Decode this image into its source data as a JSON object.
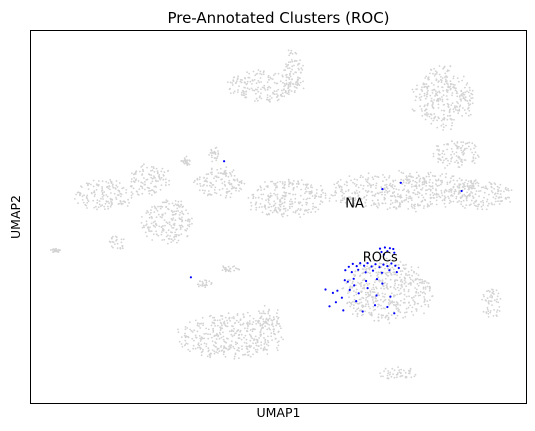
{
  "chart_data": {
    "type": "scatter",
    "title": "Pre-Annotated Clusters (ROC)",
    "xlabel": "UMAP1",
    "ylabel": "UMAP2",
    "xlim": [
      0,
      100
    ],
    "ylim": [
      0,
      100
    ],
    "grid": false,
    "legend": "none",
    "colors": {
      "background_cells": "#d3d3d3",
      "roc_cells": "#0000ff"
    },
    "cluster_labels": [
      {
        "text": "NA",
        "x": 63.5,
        "y": 53.5
      },
      {
        "text": "ROCs",
        "x": 67,
        "y": 39
      }
    ],
    "background_clusters": [
      {
        "cx": 47,
        "cy": 85,
        "rx": 7.5,
        "ry": 4
      },
      {
        "cx": 53,
        "cy": 90,
        "rx": 2,
        "ry": 5
      },
      {
        "cx": 83.5,
        "cy": 82,
        "rx": 6,
        "ry": 8
      },
      {
        "cx": 86,
        "cy": 67,
        "rx": 4.5,
        "ry": 4
      },
      {
        "cx": 75,
        "cy": 57,
        "rx": 15,
        "ry": 5
      },
      {
        "cx": 91,
        "cy": 56,
        "rx": 6,
        "ry": 4
      },
      {
        "cx": 72,
        "cy": 30,
        "rx": 9,
        "ry": 8
      },
      {
        "cx": 74,
        "cy": 8,
        "rx": 4,
        "ry": 1.8
      },
      {
        "cx": 93,
        "cy": 27,
        "rx": 2,
        "ry": 4
      },
      {
        "cx": 40.5,
        "cy": 18,
        "rx": 10.5,
        "ry": 6
      },
      {
        "cx": 48,
        "cy": 23,
        "rx": 2.5,
        "ry": 3
      },
      {
        "cx": 27.5,
        "cy": 49,
        "rx": 5,
        "ry": 6
      },
      {
        "cx": 38,
        "cy": 59,
        "rx": 5,
        "ry": 4
      },
      {
        "cx": 52,
        "cy": 55,
        "rx": 8,
        "ry": 5
      },
      {
        "cx": 15,
        "cy": 56,
        "rx": 6,
        "ry": 4
      },
      {
        "cx": 24,
        "cy": 60,
        "rx": 4,
        "ry": 4
      },
      {
        "cx": 17.5,
        "cy": 43,
        "rx": 1.5,
        "ry": 2
      },
      {
        "cx": 35,
        "cy": 32,
        "rx": 2,
        "ry": 1
      },
      {
        "cx": 40,
        "cy": 36,
        "rx": 2,
        "ry": 1
      },
      {
        "cx": 5,
        "cy": 41,
        "rx": 1,
        "ry": 0.6
      },
      {
        "cx": 31,
        "cy": 65,
        "rx": 1.2,
        "ry": 1.5
      },
      {
        "cx": 37,
        "cy": 67,
        "rx": 1,
        "ry": 2
      }
    ],
    "roc_points": [
      {
        "x": 70.5,
        "y": 41.5
      },
      {
        "x": 71.5,
        "y": 41.8
      },
      {
        "x": 72.5,
        "y": 41.6
      },
      {
        "x": 73.2,
        "y": 41.4
      },
      {
        "x": 70.8,
        "y": 40.6
      },
      {
        "x": 72.0,
        "y": 40.8
      },
      {
        "x": 73.4,
        "y": 40.4
      },
      {
        "x": 71.3,
        "y": 39.9
      },
      {
        "x": 64.2,
        "y": 36.6
      },
      {
        "x": 65.0,
        "y": 37.4
      },
      {
        "x": 65.8,
        "y": 36.8
      },
      {
        "x": 66.5,
        "y": 37.6
      },
      {
        "x": 67.3,
        "y": 36.9
      },
      {
        "x": 68.0,
        "y": 37.6
      },
      {
        "x": 68.8,
        "y": 36.7
      },
      {
        "x": 69.6,
        "y": 37.3
      },
      {
        "x": 70.4,
        "y": 36.5
      },
      {
        "x": 71.2,
        "y": 37.2
      },
      {
        "x": 72.0,
        "y": 36.8
      },
      {
        "x": 72.8,
        "y": 37.5
      },
      {
        "x": 73.6,
        "y": 36.9
      },
      {
        "x": 74.3,
        "y": 36.3
      },
      {
        "x": 63.5,
        "y": 35.7
      },
      {
        "x": 64.8,
        "y": 35.2
      },
      {
        "x": 66.1,
        "y": 35.8
      },
      {
        "x": 67.6,
        "y": 35.1
      },
      {
        "x": 69.1,
        "y": 35.6
      },
      {
        "x": 70.9,
        "y": 35.0
      },
      {
        "x": 72.4,
        "y": 35.7
      },
      {
        "x": 73.9,
        "y": 35.2
      },
      {
        "x": 63.4,
        "y": 33.0
      },
      {
        "x": 64.0,
        "y": 32.6
      },
      {
        "x": 65.2,
        "y": 33.4
      },
      {
        "x": 67.7,
        "y": 32.8
      },
      {
        "x": 69.9,
        "y": 33.3
      },
      {
        "x": 71.0,
        "y": 32.1
      },
      {
        "x": 59.5,
        "y": 30.5
      },
      {
        "x": 61.0,
        "y": 29.6
      },
      {
        "x": 61.9,
        "y": 30.2
      },
      {
        "x": 62.8,
        "y": 28.3
      },
      {
        "x": 64.4,
        "y": 30.4
      },
      {
        "x": 66.2,
        "y": 29.5
      },
      {
        "x": 68.0,
        "y": 30.9
      },
      {
        "x": 69.8,
        "y": 28.9
      },
      {
        "x": 61.6,
        "y": 27.1
      },
      {
        "x": 63.1,
        "y": 24.9
      },
      {
        "x": 65.7,
        "y": 27.4
      },
      {
        "x": 67.0,
        "y": 24.6
      },
      {
        "x": 69.5,
        "y": 26.3
      },
      {
        "x": 72.0,
        "y": 25.8
      },
      {
        "x": 73.4,
        "y": 24.1
      },
      {
        "x": 60.3,
        "y": 26.0
      },
      {
        "x": 72.6,
        "y": 28.6
      },
      {
        "x": 65.3,
        "y": 31.6
      },
      {
        "x": 74.7,
        "y": 59.2
      },
      {
        "x": 71.0,
        "y": 57.5
      },
      {
        "x": 87.0,
        "y": 57.0
      },
      {
        "x": 39.0,
        "y": 65.0
      },
      {
        "x": 32.3,
        "y": 33.8
      }
    ]
  }
}
